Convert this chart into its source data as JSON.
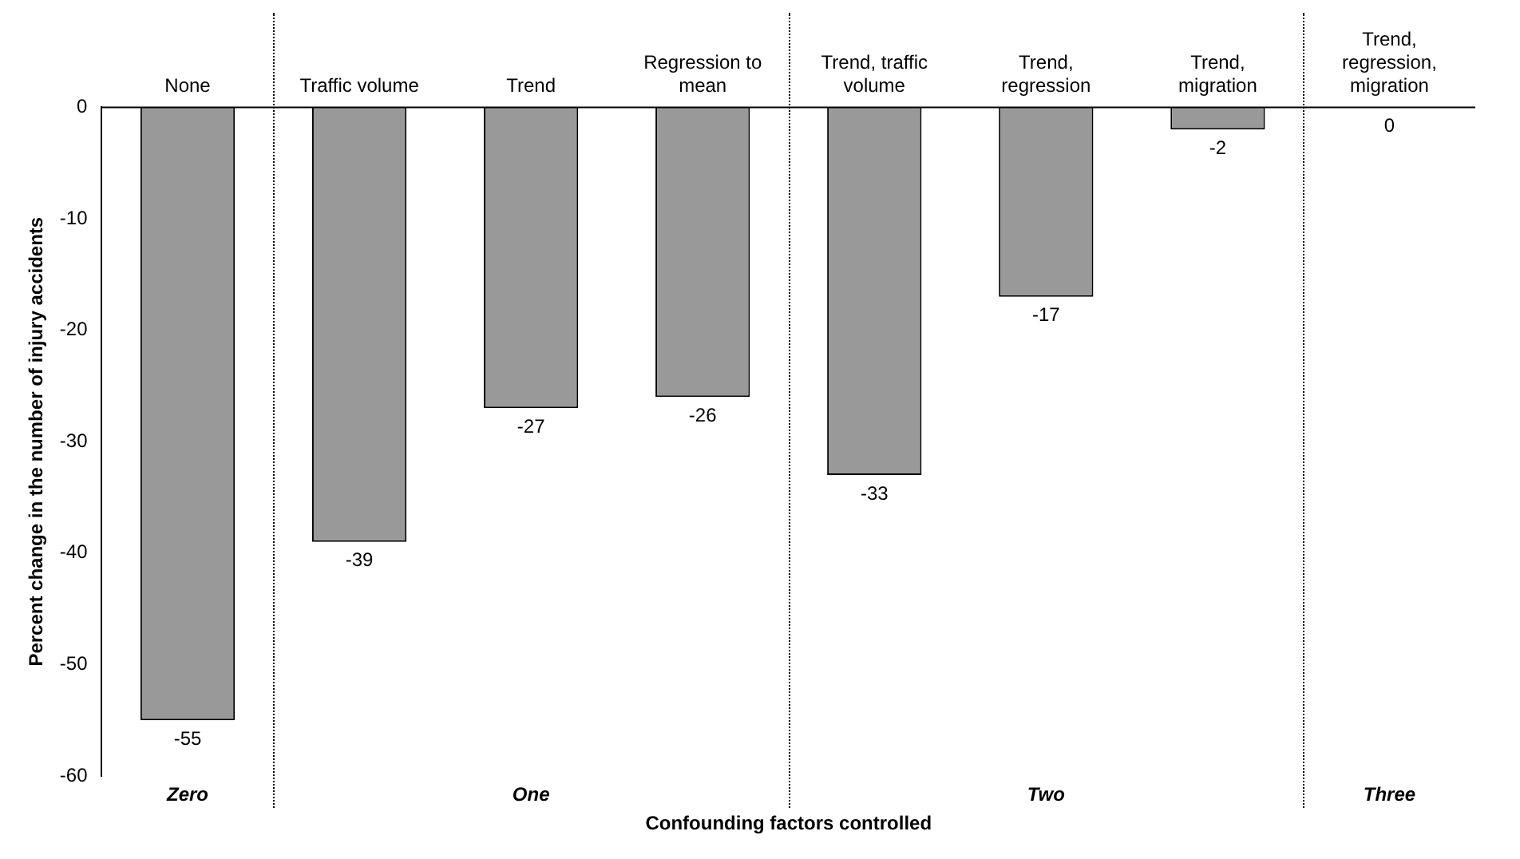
{
  "chart_data": {
    "type": "bar",
    "xlabel": "Confounding factors controlled",
    "ylabel": "Percent change in the number of injury accidents",
    "categories": [
      "None",
      "Traffic volume",
      "Trend",
      "Regression to mean",
      "Trend, traffic volume",
      "Trend, regression",
      "Trend, migration",
      "Trend, regression, migration"
    ],
    "values": [
      -55,
      -39,
      -27,
      -26,
      -33,
      -17,
      -2,
      0
    ],
    "color": "#999999",
    "ylim": [
      -60,
      0
    ],
    "yticks": [
      -60,
      -50,
      -40,
      -30,
      -20,
      -10,
      0
    ],
    "grid": false,
    "data_labels": true,
    "annotations": [
      "Zero",
      "One",
      "Two",
      "Three"
    ]
  }
}
